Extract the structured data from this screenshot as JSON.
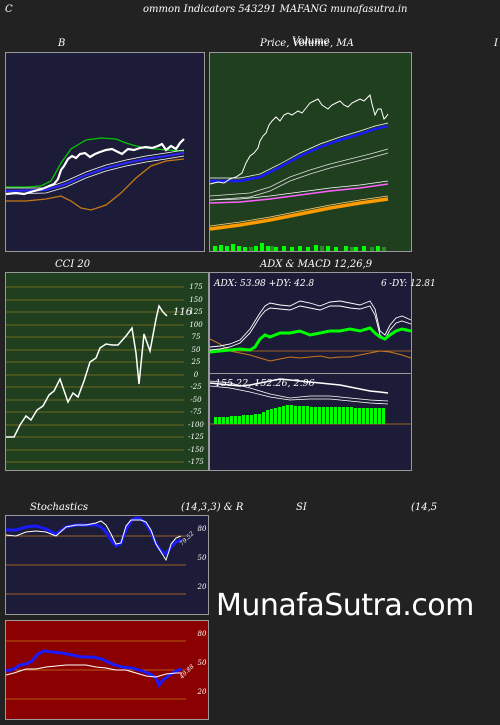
{
  "header": {
    "left": "C",
    "text": "ommon  Indicators 543291 MAFANG munafasutra.in"
  },
  "bb": {
    "title": "B"
  },
  "price": {
    "title_a": "Price,",
    "title_b": "Volume,",
    "title_overlay": "Volume",
    "title_c": "MA",
    "edge": "I"
  },
  "cci": {
    "title": "CCI 20",
    "value": "116",
    "ticks": [
      "175",
      "150",
      "125",
      "100",
      "75",
      "50",
      "25",
      "0",
      "-25",
      "-50",
      "-75",
      "-100",
      "-125",
      "-150",
      "-175"
    ]
  },
  "adx": {
    "title": "ADX  & MACD 12,26,9",
    "readout": "ADX: 53.98  +DY: 42.8",
    "dy6": "6",
    "dy": "-DY: 12.81"
  },
  "macd": {
    "readout": "155.22,  152.26,  2.96"
  },
  "stoch": {
    "title_left": "Stochastics",
    "title_mid": "(14,3,3) & R",
    "title_si": "SI",
    "title_right": "(14,5",
    "ticks": [
      "80",
      "50",
      "20"
    ],
    "value": "79.52"
  },
  "rsi": {
    "ticks": [
      "80",
      "50",
      "20"
    ],
    "value": "49.88"
  },
  "watermark": "MunafaSutra.com",
  "colors": {
    "panel_navy": "#1c1c38",
    "panel_green": "#1f3f1f",
    "panel_red": "#8b0000",
    "grid_orange": "#c8781e",
    "olive_line": "#8a7a22",
    "bright_green": "#00ff00",
    "blue": "#0000ff"
  },
  "icons": {
    "bull_volume": "green-volume-bar"
  }
}
